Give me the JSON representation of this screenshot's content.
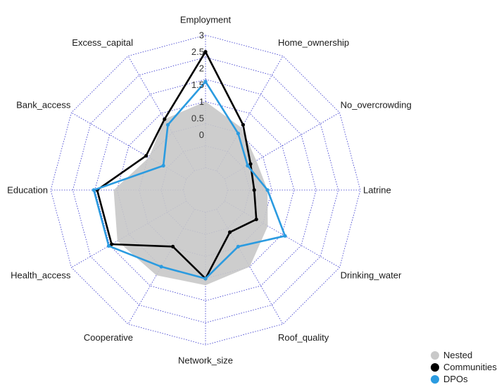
{
  "chart_data": {
    "type": "radar",
    "axes": [
      "Employment",
      "Home_ownership",
      "No_overcrowding",
      "Latrine",
      "Drinking_water",
      "Roof_quality",
      "Network_size",
      "Cooperative",
      "Health_access",
      "Education",
      "Bank_access",
      "Excess_capital"
    ],
    "ticks": [
      "0",
      "0.5",
      "1",
      "1.5",
      "2",
      "2.5",
      "3"
    ],
    "rmin": -1,
    "rmax": 3,
    "grid": true,
    "legend_position": "bottom-right",
    "series": [
      {
        "name": "Nested",
        "color": "#c8c8c8",
        "style": "filled",
        "values": [
          1.0,
          0.5,
          0.1,
          0.2,
          0.5,
          1.0,
          1.2,
          1.3,
          1.4,
          1.1,
          0.3,
          0.8
        ]
      },
      {
        "name": "Communities",
        "color": "#000000",
        "style": "line",
        "values": [
          2.5,
          0.6,
          -0.1,
          -0.2,
          0.1,
          -0.2,
          1.0,
          0.3,
          1.6,
          1.6,
          0.4,
          0.8
        ]
      },
      {
        "name": "DPOs",
        "color": "#2b9be0",
        "style": "line",
        "values": [
          1.6,
          0.3,
          -0.2,
          0.2,
          1.1,
          0.3,
          1.0,
          1.0,
          1.7,
          1.7,
          -0.2,
          0.6
        ]
      }
    ]
  }
}
